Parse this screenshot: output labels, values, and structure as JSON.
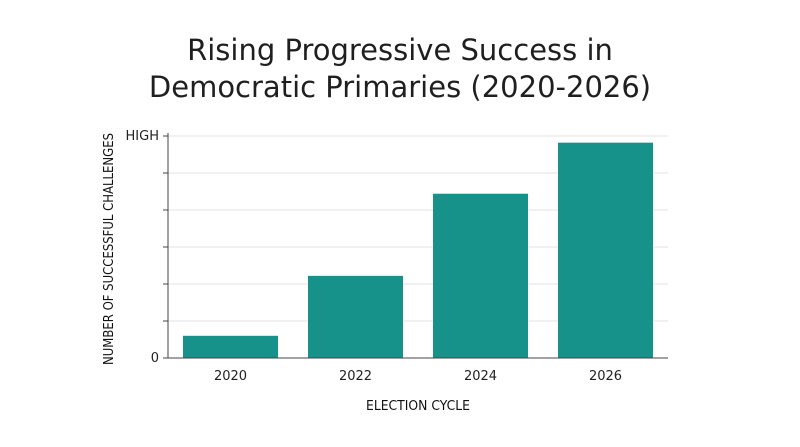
{
  "chart_data": {
    "type": "bar",
    "title_lines": [
      "Rising Progressive Success in",
      "Democratic Primaries (2020-2026)"
    ],
    "xlabel": "ELECTION CYCLE",
    "ylabel": "NUMBER OF SUCCESSFUL CHALLENGES",
    "categories": [
      "2020",
      "2022",
      "2024",
      "2026"
    ],
    "values": [
      0.1,
      0.37,
      0.74,
      0.97
    ],
    "ylim": [
      0,
      1
    ],
    "y_tick_labels": [
      {
        "value": 0,
        "label": "0"
      },
      {
        "value": 1,
        "label": "HIGH"
      }
    ],
    "y_minor_ticks": [
      0.1667,
      0.3333,
      0.5,
      0.6667,
      0.8333
    ],
    "grid": true,
    "bar_color": "#17928a",
    "grid_color": "#e3e3e3",
    "axis_color": "#444444"
  }
}
